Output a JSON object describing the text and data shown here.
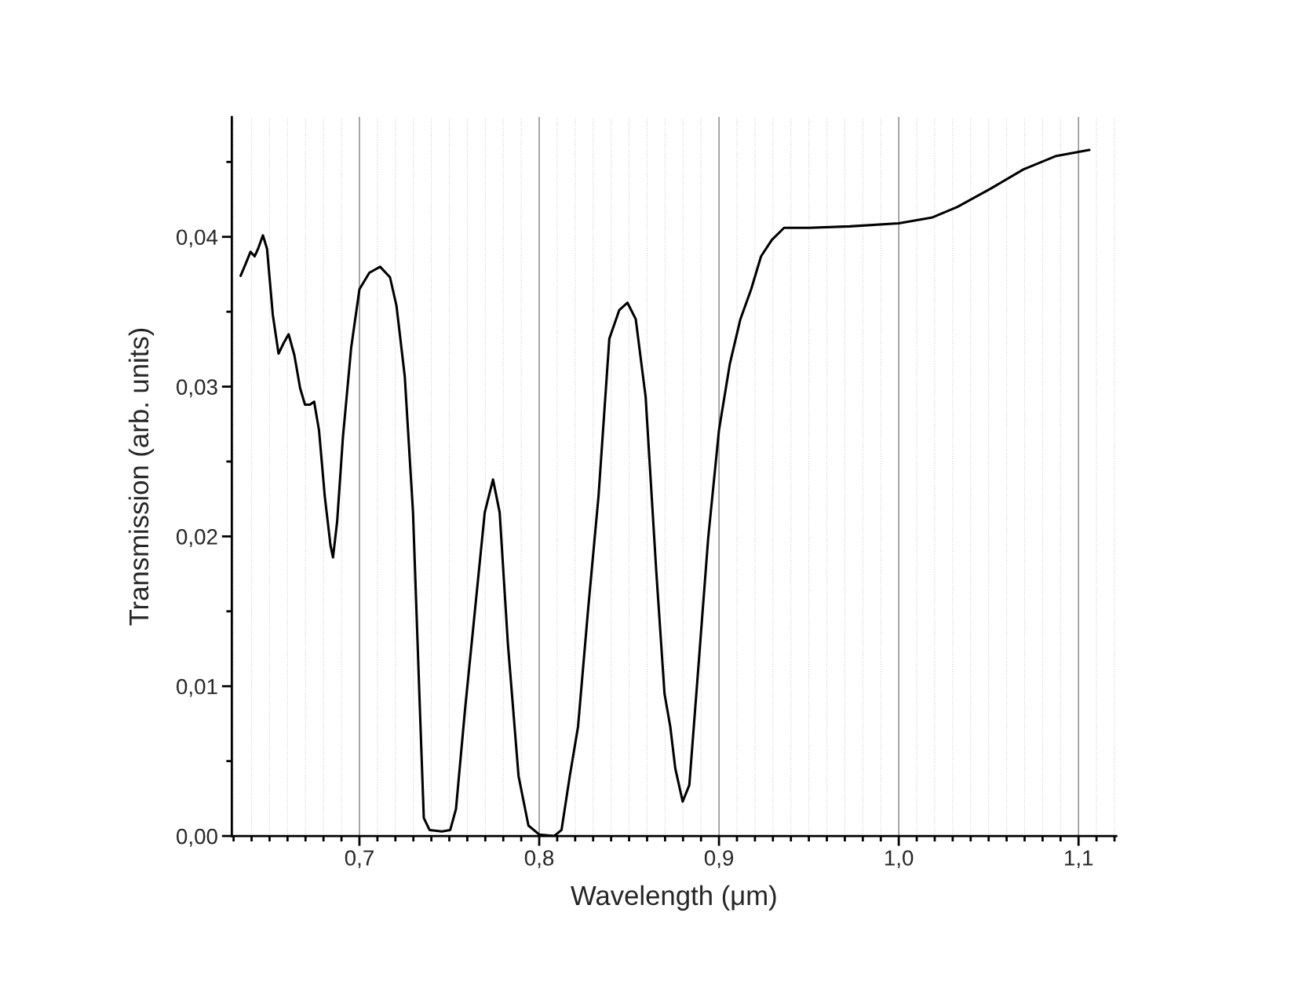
{
  "chart_data": {
    "type": "line",
    "xlabel": "Wavelength (μm)",
    "ylabel": "Transmission (arb. units)",
    "xlim": [
      0.629,
      1.121
    ],
    "ylim": [
      0,
      0.048
    ],
    "xticks": [
      {
        "value": 0.63,
        "label": null
      },
      {
        "value": 0.64,
        "label": null
      },
      {
        "value": 0.65,
        "label": null
      },
      {
        "value": 0.66,
        "label": null
      },
      {
        "value": 0.67,
        "label": null
      },
      {
        "value": 0.68,
        "label": null
      },
      {
        "value": 0.69,
        "label": null
      },
      {
        "value": 0.7,
        "label": "0,7"
      },
      {
        "value": 0.71,
        "label": null
      },
      {
        "value": 0.72,
        "label": null
      },
      {
        "value": 0.73,
        "label": null
      },
      {
        "value": 0.74,
        "label": null
      },
      {
        "value": 0.75,
        "label": null
      },
      {
        "value": 0.76,
        "label": null
      },
      {
        "value": 0.77,
        "label": null
      },
      {
        "value": 0.78,
        "label": null
      },
      {
        "value": 0.79,
        "label": null
      },
      {
        "value": 0.8,
        "label": "0,8"
      },
      {
        "value": 0.81,
        "label": null
      },
      {
        "value": 0.82,
        "label": null
      },
      {
        "value": 0.83,
        "label": null
      },
      {
        "value": 0.84,
        "label": null
      },
      {
        "value": 0.85,
        "label": null
      },
      {
        "value": 0.86,
        "label": null
      },
      {
        "value": 0.87,
        "label": null
      },
      {
        "value": 0.88,
        "label": null
      },
      {
        "value": 0.89,
        "label": null
      },
      {
        "value": 0.9,
        "label": "0,9"
      },
      {
        "value": 0.91,
        "label": null
      },
      {
        "value": 0.92,
        "label": null
      },
      {
        "value": 0.93,
        "label": null
      },
      {
        "value": 0.94,
        "label": null
      },
      {
        "value": 0.95,
        "label": null
      },
      {
        "value": 0.96,
        "label": null
      },
      {
        "value": 0.97,
        "label": null
      },
      {
        "value": 0.98,
        "label": null
      },
      {
        "value": 0.99,
        "label": null
      },
      {
        "value": 1.0,
        "label": "1,0"
      },
      {
        "value": 1.01,
        "label": null
      },
      {
        "value": 1.02,
        "label": null
      },
      {
        "value": 1.03,
        "label": null
      },
      {
        "value": 1.04,
        "label": null
      },
      {
        "value": 1.05,
        "label": null
      },
      {
        "value": 1.06,
        "label": null
      },
      {
        "value": 1.07,
        "label": null
      },
      {
        "value": 1.08,
        "label": null
      },
      {
        "value": 1.09,
        "label": null
      },
      {
        "value": 1.1,
        "label": "1,1"
      },
      {
        "value": 1.11,
        "label": null
      },
      {
        "value": 1.12,
        "label": null
      }
    ],
    "yticks": [
      {
        "value": 0,
        "label": "0,00"
      },
      {
        "value": 0.005,
        "label": null
      },
      {
        "value": 0.01,
        "label": "0,01"
      },
      {
        "value": 0.015,
        "label": null
      },
      {
        "value": 0.02,
        "label": "0,02"
      },
      {
        "value": 0.025,
        "label": null
      },
      {
        "value": 0.03,
        "label": "0,03"
      },
      {
        "value": 0.035,
        "label": null
      },
      {
        "value": 0.04,
        "label": "0,04"
      },
      {
        "value": 0.045,
        "label": null
      }
    ],
    "grid": "x",
    "line_style": "solid",
    "series": [
      {
        "color": "#000000",
        "x": [
          0.6339,
          0.6367,
          0.6394,
          0.6417,
          0.6436,
          0.6463,
          0.6486,
          0.6518,
          0.655,
          0.6578,
          0.6606,
          0.6638,
          0.667,
          0.6697,
          0.6725,
          0.6748,
          0.6775,
          0.6807,
          0.6839,
          0.6853,
          0.6876,
          0.6908,
          0.6954,
          0.7,
          0.7055,
          0.7115,
          0.717,
          0.7206,
          0.7252,
          0.7298,
          0.7335,
          0.7358,
          0.739,
          0.7459,
          0.7505,
          0.7537,
          0.7587,
          0.7642,
          0.7697,
          0.7743,
          0.778,
          0.7826,
          0.7885,
          0.794,
          0.8,
          0.8083,
          0.8124,
          0.817,
          0.8216,
          0.8271,
          0.833,
          0.839,
          0.8445,
          0.8491,
          0.8537,
          0.8592,
          0.8651,
          0.8697,
          0.8729,
          0.8757,
          0.8798,
          0.8835,
          0.8881,
          0.894,
          0.9,
          0.906,
          0.9119,
          0.9179,
          0.9234,
          0.9294,
          0.9362,
          0.95,
          0.9729,
          1.0,
          1.0188,
          1.0326,
          1.0509,
          1.0693,
          1.0876,
          1.106
        ],
        "values": [
          0.0374,
          0.0382,
          0.039,
          0.0387,
          0.0392,
          0.0401,
          0.0392,
          0.0348,
          0.0322,
          0.0329,
          0.0335,
          0.0321,
          0.0299,
          0.0288,
          0.0288,
          0.029,
          0.0271,
          0.0227,
          0.0194,
          0.0186,
          0.021,
          0.0266,
          0.0326,
          0.0365,
          0.0376,
          0.038,
          0.0373,
          0.0354,
          0.0307,
          0.0216,
          0.0089,
          0.0012,
          0.0004,
          0.0003,
          0.0004,
          0.0018,
          0.0084,
          0.015,
          0.0216,
          0.0238,
          0.0216,
          0.0128,
          0.004,
          0.0007,
          0.0001,
          0.0,
          0.0004,
          0.004,
          0.0073,
          0.015,
          0.0227,
          0.0332,
          0.0351,
          0.0356,
          0.0345,
          0.0293,
          0.0177,
          0.0095,
          0.0073,
          0.0045,
          0.0023,
          0.0034,
          0.0106,
          0.0199,
          0.0271,
          0.0315,
          0.0345,
          0.0365,
          0.0387,
          0.0398,
          0.0406,
          0.0406,
          0.0407,
          0.0409,
          0.0413,
          0.042,
          0.0432,
          0.0445,
          0.0454,
          0.0458
        ]
      }
    ]
  }
}
